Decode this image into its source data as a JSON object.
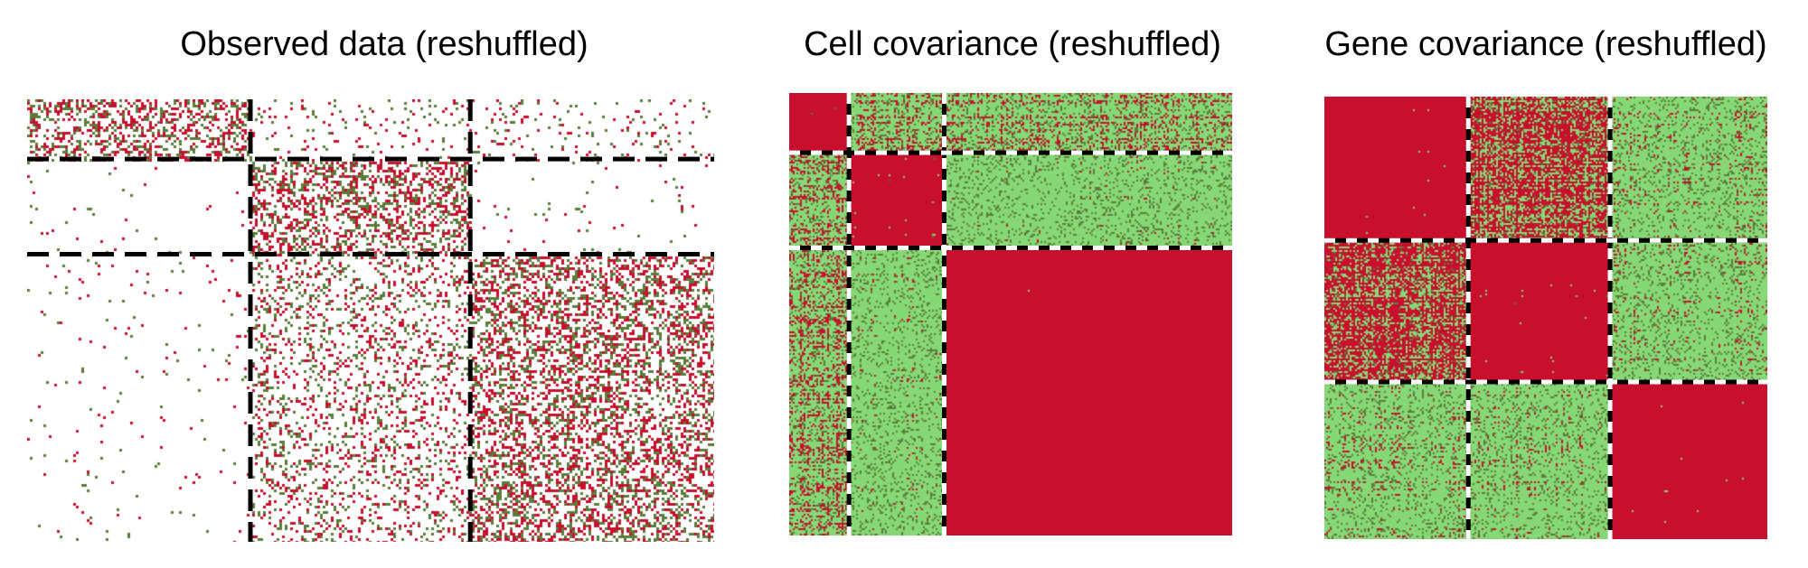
{
  "colors": {
    "red": "#c8102e",
    "green": "#86d776",
    "olive": "#5a7d3a",
    "background": "#ffffff",
    "line": "#000000"
  },
  "chart_data": [
    {
      "id": "observed",
      "type": "heatmap",
      "title": "Observed data (reshuffled)",
      "style": "sparse",
      "block_boundaries_fraction": {
        "x": [
          0.325,
          0.645
        ],
        "y": [
          0.135,
          0.35
        ]
      },
      "divider_style": "black-dashed"
    },
    {
      "id": "cell",
      "type": "heatmap",
      "title": "Cell covariance (reshuffled)",
      "style": "dense",
      "block_boundaries_fraction": {
        "x": [
          0.135,
          0.35
        ],
        "y": [
          0.135,
          0.35
        ]
      },
      "divider_style": "black-white-dashed"
    },
    {
      "id": "gene",
      "type": "heatmap",
      "title": "Gene covariance (reshuffled)",
      "style": "dense",
      "block_boundaries_fraction": {
        "x": [
          0.325,
          0.645
        ],
        "y": [
          0.325,
          0.645
        ]
      },
      "divider_style": "black-white-dashed"
    }
  ]
}
